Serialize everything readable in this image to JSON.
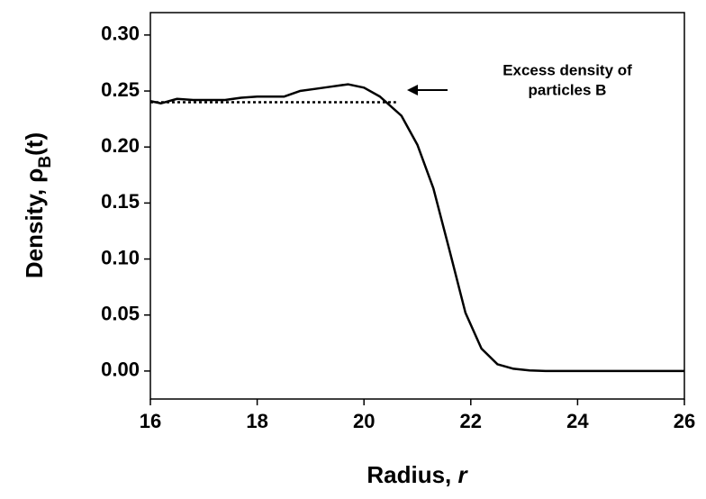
{
  "chart_data": {
    "type": "line",
    "x_label": {
      "text": "Radius, ",
      "var": "r"
    },
    "y_label": {
      "main": "Density, ρ",
      "sub": "B",
      "tail": "(t)"
    },
    "annotation": [
      "Excess density  of",
      "particles B"
    ],
    "xlim": [
      16,
      26
    ],
    "xticks": [
      16,
      18,
      20,
      22,
      24,
      26
    ],
    "ylim": [
      -0.025,
      0.32
    ],
    "yticks": [
      {
        "value": 0,
        "label": "0.00"
      },
      {
        "value": 0.05,
        "label": "0.05"
      },
      {
        "value": 0.1,
        "label": "0.10"
      },
      {
        "value": 0.15,
        "label": "0.15"
      },
      {
        "value": 0.2,
        "label": "0.20"
      },
      {
        "value": 0.25,
        "label": "0.25"
      },
      {
        "value": 0.3,
        "label": "0.30"
      }
    ],
    "reference_line": {
      "y": 0.24,
      "x": [
        16,
        20.6
      ],
      "color": "#000000"
    },
    "series": [
      {
        "color": "#000000",
        "x": [
          16.0,
          16.2,
          16.5,
          16.8,
          17.1,
          17.4,
          17.7,
          18.0,
          18.3,
          18.5,
          18.8,
          19.1,
          19.4,
          19.7,
          20.0,
          20.3,
          20.7,
          21.0,
          21.3,
          21.6,
          21.9,
          22.2,
          22.5,
          22.8,
          23.1,
          23.4,
          24.0,
          25.0,
          26.0
        ],
        "values": [
          0.241,
          0.239,
          0.243,
          0.242,
          0.242,
          0.242,
          0.244,
          0.245,
          0.245,
          0.245,
          0.25,
          0.252,
          0.254,
          0.256,
          0.253,
          0.245,
          0.228,
          0.202,
          0.163,
          0.108,
          0.052,
          0.02,
          0.006,
          0.002,
          0.0005,
          0,
          0,
          0,
          0
        ]
      }
    ]
  }
}
